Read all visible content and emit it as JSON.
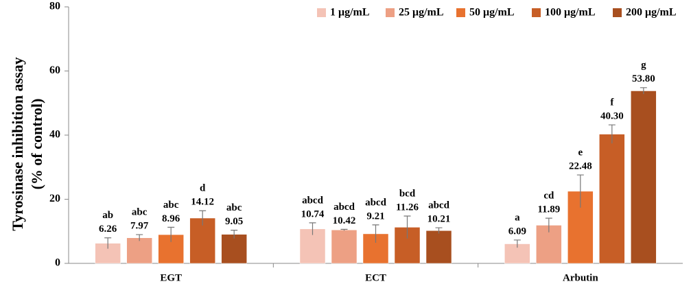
{
  "chart_data": {
    "type": "bar",
    "ylabel": [
      "Tyrosinase inhibition assay",
      "(% of control)"
    ],
    "categories": [
      "EGT",
      "ECT",
      "Arbutin"
    ],
    "ylim": [
      0,
      80
    ],
    "yticks": [
      0,
      20,
      40,
      60,
      80
    ],
    "series": [
      {
        "name": "1 μg/mL",
        "color": "#f4c3b6",
        "values": [
          6.26,
          10.74,
          6.09
        ],
        "errors": [
          1.7,
          1.9,
          1.2
        ],
        "value_labels": [
          "6.26",
          "10.74",
          "6.09"
        ],
        "letters": [
          "ab",
          "abcd",
          "a"
        ]
      },
      {
        "name": "25 μg/mL",
        "color": "#eda084",
        "values": [
          7.97,
          10.42,
          11.89
        ],
        "errors": [
          1.0,
          0.2,
          2.2
        ],
        "value_labels": [
          "7.97",
          "10.42",
          "11.89"
        ],
        "letters": [
          "abc",
          "abcd",
          "cd"
        ]
      },
      {
        "name": "50 μg/mL",
        "color": "#e8722f",
        "values": [
          8.96,
          9.21,
          22.48
        ],
        "errors": [
          2.3,
          2.8,
          5.1
        ],
        "value_labels": [
          "8.96",
          "9.21",
          "22.48"
        ],
        "letters": [
          "abc",
          "abcd",
          "e"
        ]
      },
      {
        "name": "100 μg/mL",
        "color": "#c75e26",
        "values": [
          14.12,
          11.26,
          40.3
        ],
        "errors": [
          2.3,
          3.5,
          2.9
        ],
        "value_labels": [
          "14.12",
          "11.26",
          "40.30"
        ],
        "letters": [
          "d",
          "bcd",
          "f"
        ]
      },
      {
        "name": "200 μg/mL",
        "color": "#a84f1f",
        "values": [
          9.05,
          10.21,
          53.8
        ],
        "errors": [
          1.3,
          0.9,
          1.0
        ],
        "value_labels": [
          "9.05",
          "10.21",
          "53.80"
        ],
        "letters": [
          "abc",
          "abcd",
          "g"
        ]
      }
    ]
  }
}
